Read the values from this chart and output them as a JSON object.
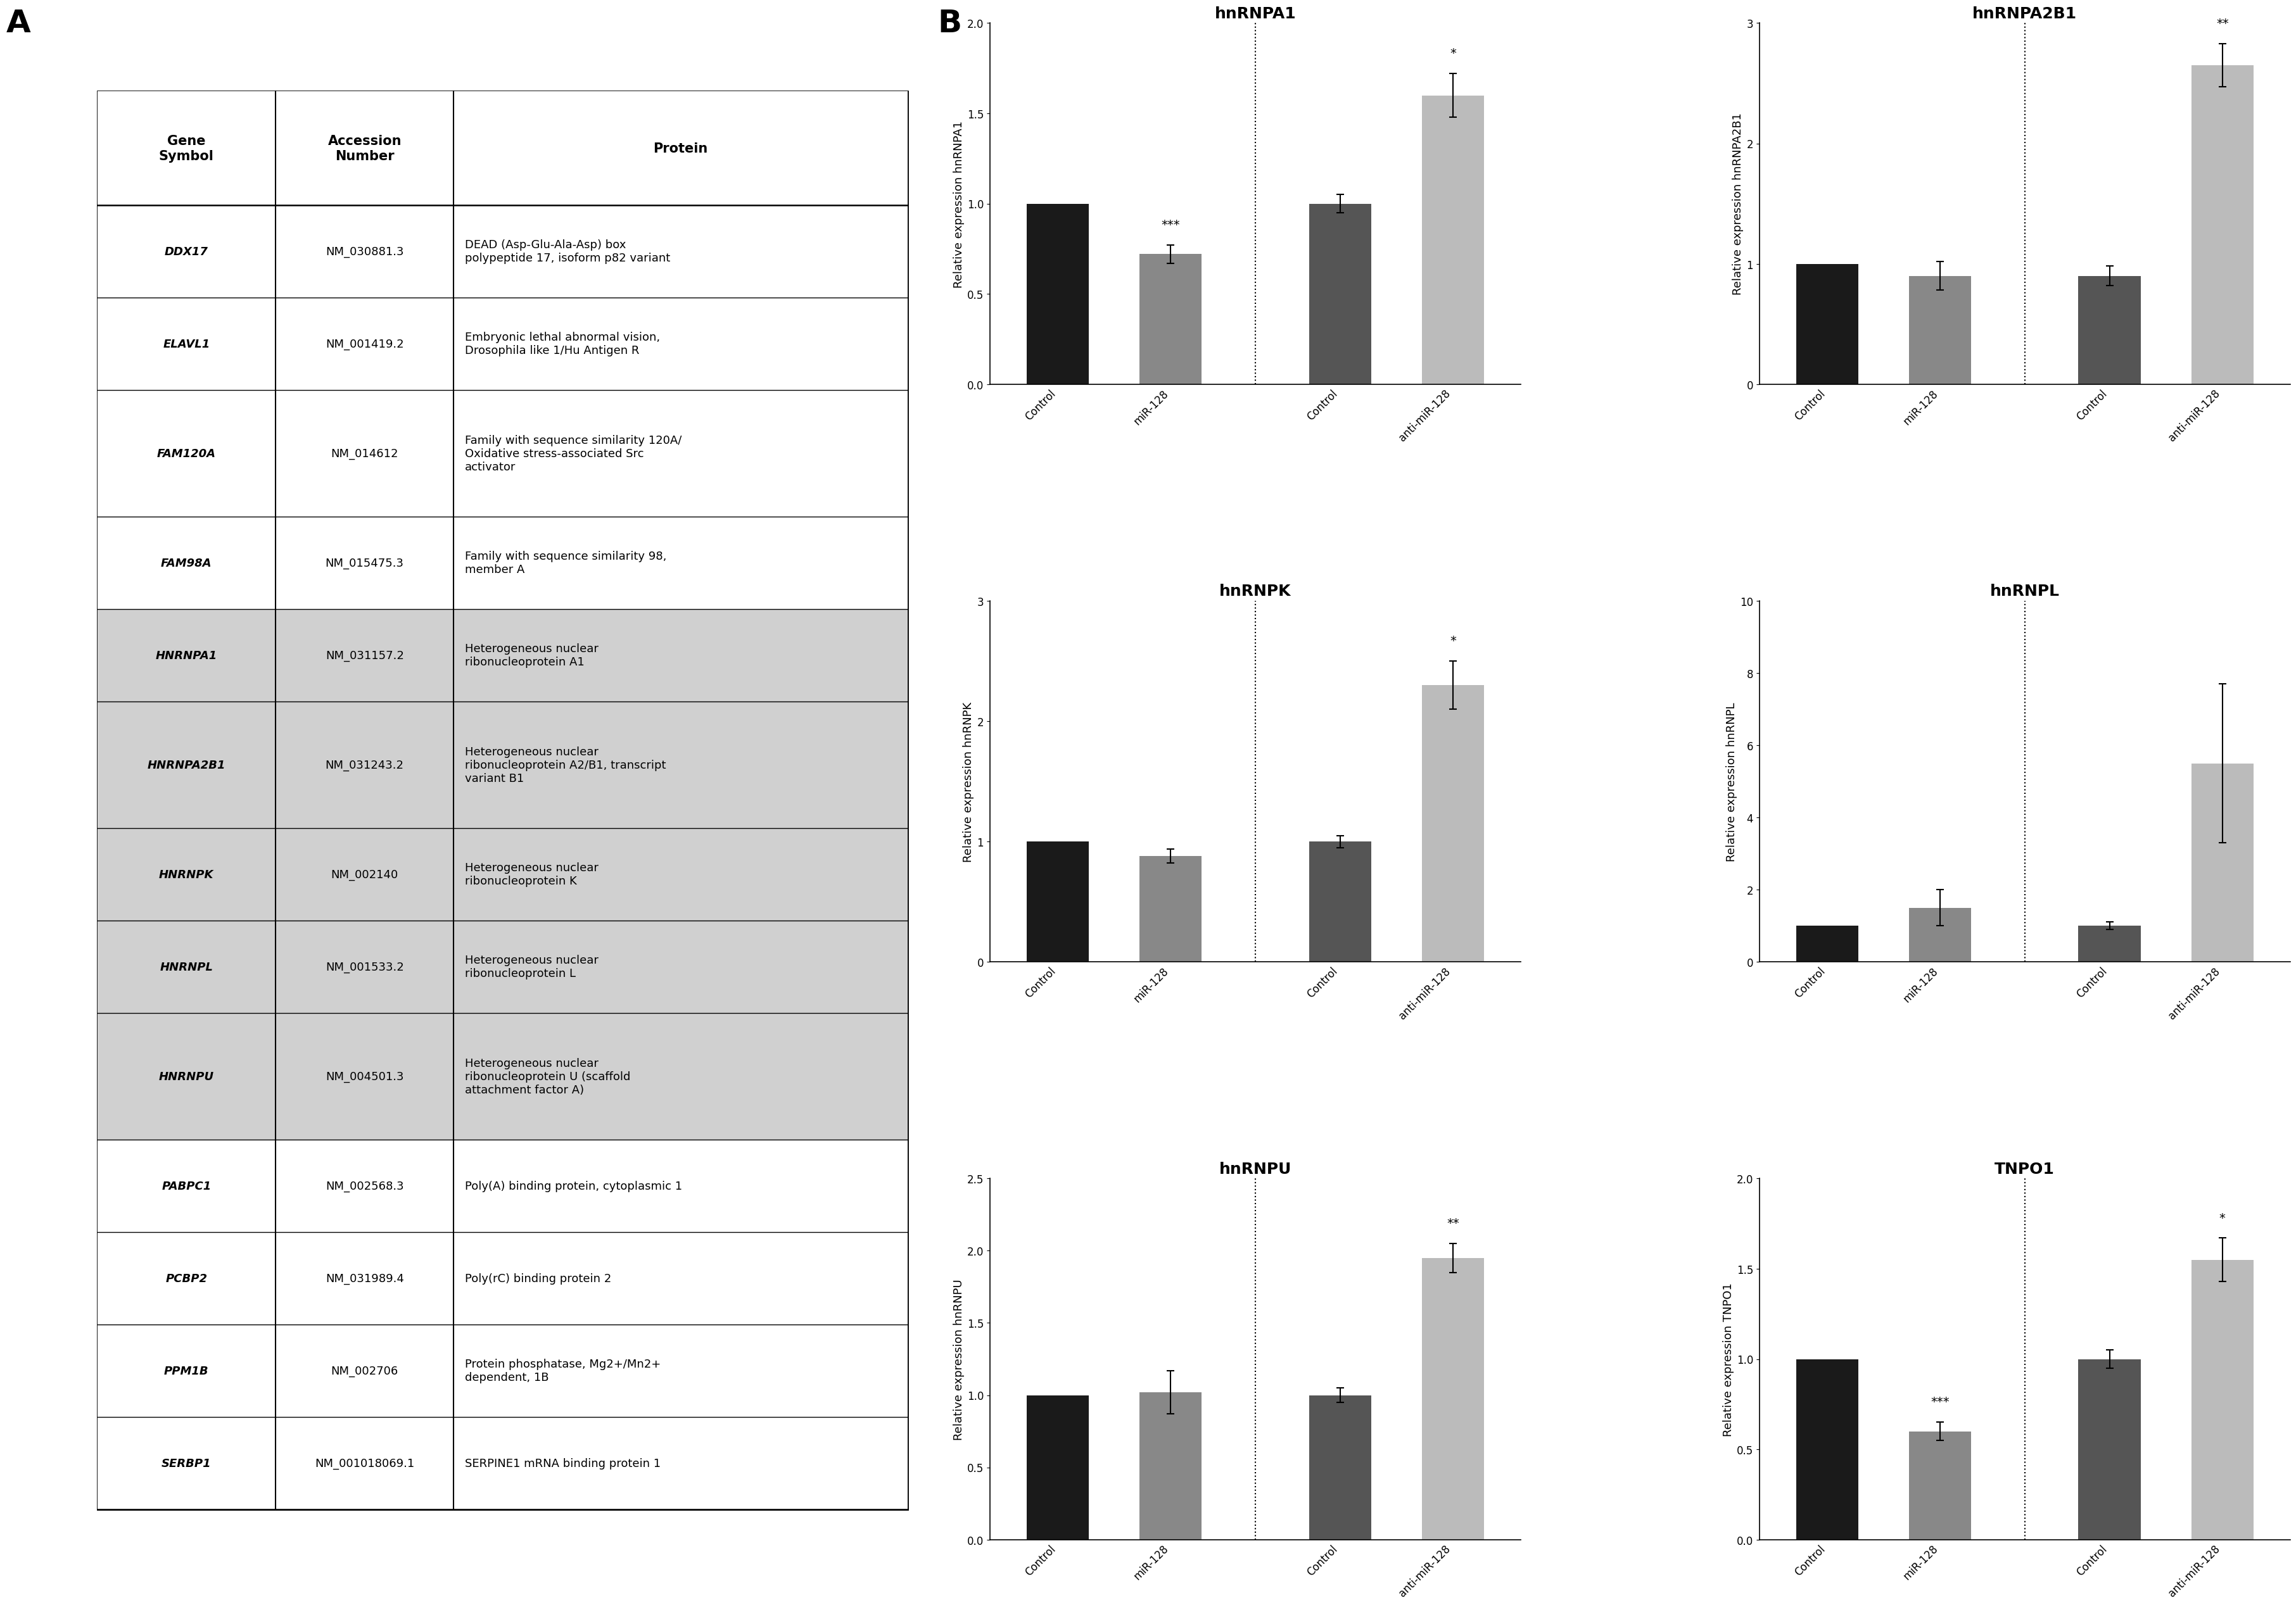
{
  "table": {
    "headers": [
      "Gene\nSymbol",
      "Accession\nNumber",
      "Protein"
    ],
    "rows": [
      [
        "DDX17",
        "NM_030881.3",
        "DEAD (Asp-Glu-Ala-Asp) box\npolypeptide 17, isoform p82 variant"
      ],
      [
        "ELAVL1",
        "NM_001419.2",
        "Embryonic lethal abnormal vision,\nDrosophila like 1/Hu Antigen R"
      ],
      [
        "FAM120A",
        "NM_014612",
        "Family with sequence similarity 120A/\nOxidative stress-associated Src\nactivator"
      ],
      [
        "FAM98A",
        "NM_015475.3",
        "Family with sequence similarity 98,\nmember A"
      ],
      [
        "HNRNPA1",
        "NM_031157.2",
        "Heterogeneous nuclear\nribonucleoprotein A1"
      ],
      [
        "HNRNPA2B1",
        "NM_031243.2",
        "Heterogeneous nuclear\nribonucleoprotein A2/B1, transcript\nvariant B1"
      ],
      [
        "HNRNPK",
        "NM_002140",
        "Heterogeneous nuclear\nribonucleoprotein K"
      ],
      [
        "HNRNPL",
        "NM_001533.2",
        "Heterogeneous nuclear\nribonucleoprotein L"
      ],
      [
        "HNRNPU",
        "NM_004501.3",
        "Heterogeneous nuclear\nribonucleoprotein U (scaffold\nattachment factor A)"
      ],
      [
        "PABPC1",
        "NM_002568.3",
        "Poly(A) binding protein, cytoplasmic 1"
      ],
      [
        "PCBP2",
        "NM_031989.4",
        "Poly(rC) binding protein 2"
      ],
      [
        "PPM1B",
        "NM_002706",
        "Protein phosphatase, Mg2+/Mn2+\ndependent, 1B"
      ],
      [
        "SERBP1",
        "NM_001018069.1",
        "SERPINE1 mRNA binding protein 1"
      ]
    ],
    "highlighted_rows": [
      4,
      5,
      6,
      7,
      8
    ],
    "highlight_color": "#d0d0d0"
  },
  "charts": {
    "hnRNPA1": {
      "title": "hnRNPA1",
      "ylabel": "Relative expression hnRNPA1",
      "ylim": [
        0,
        2.0
      ],
      "yticks": [
        0.0,
        0.5,
        1.0,
        1.5,
        2.0
      ],
      "bars": [
        {
          "label": "Control",
          "value": 1.0,
          "error": 0.0,
          "color": "#1a1a1a",
          "group": "miR"
        },
        {
          "label": "miR-128",
          "value": 0.72,
          "error": 0.05,
          "color": "#888888",
          "group": "miR"
        },
        {
          "label": "Control",
          "value": 1.0,
          "error": 0.05,
          "color": "#555555",
          "group": "anti"
        },
        {
          "label": "anti-miR-128",
          "value": 1.6,
          "error": 0.12,
          "color": "#bbbbbb",
          "group": "anti"
        }
      ],
      "significance": [
        {
          "bar": 1,
          "text": "***"
        },
        {
          "bar": 3,
          "text": "*"
        }
      ]
    },
    "hnRNPA2B1": {
      "title": "hnRNPA2B1",
      "ylabel": "Relative expression hnRNPA2B1",
      "ylim": [
        0,
        3.0
      ],
      "yticks": [
        0,
        1,
        2,
        3
      ],
      "bars": [
        {
          "label": "Control",
          "value": 1.0,
          "error": 0.0,
          "color": "#1a1a1a",
          "group": "miR"
        },
        {
          "label": "miR-128",
          "value": 0.9,
          "error": 0.12,
          "color": "#888888",
          "group": "miR"
        },
        {
          "label": "Control",
          "value": 0.9,
          "error": 0.08,
          "color": "#555555",
          "group": "anti"
        },
        {
          "label": "anti-miR-128",
          "value": 2.65,
          "error": 0.18,
          "color": "#bbbbbb",
          "group": "anti"
        }
      ],
      "significance": [
        {
          "bar": 3,
          "text": "**"
        }
      ]
    },
    "hnRNPK": {
      "title": "hnRNPK",
      "ylabel": "Relative expression hnRNPK",
      "ylim": [
        0,
        3.0
      ],
      "yticks": [
        0,
        1,
        2,
        3
      ],
      "bars": [
        {
          "label": "Control",
          "value": 1.0,
          "error": 0.0,
          "color": "#1a1a1a",
          "group": "miR"
        },
        {
          "label": "miR-128",
          "value": 0.88,
          "error": 0.06,
          "color": "#888888",
          "group": "miR"
        },
        {
          "label": "Control",
          "value": 1.0,
          "error": 0.05,
          "color": "#555555",
          "group": "anti"
        },
        {
          "label": "anti-miR-128",
          "value": 2.3,
          "error": 0.2,
          "color": "#bbbbbb",
          "group": "anti"
        }
      ],
      "significance": [
        {
          "bar": 3,
          "text": "*"
        }
      ]
    },
    "hnRNPL": {
      "title": "hnRNPL",
      "ylabel": "Relative expression hnRNPL",
      "ylim": [
        0,
        10
      ],
      "yticks": [
        0,
        2,
        4,
        6,
        8,
        10
      ],
      "bars": [
        {
          "label": "Control",
          "value": 1.0,
          "error": 0.0,
          "color": "#1a1a1a",
          "group": "miR"
        },
        {
          "label": "miR-128",
          "value": 1.5,
          "error": 0.5,
          "color": "#888888",
          "group": "miR"
        },
        {
          "label": "Control",
          "value": 1.0,
          "error": 0.1,
          "color": "#555555",
          "group": "anti"
        },
        {
          "label": "anti-miR-128",
          "value": 5.5,
          "error": 2.2,
          "color": "#bbbbbb",
          "group": "anti"
        }
      ],
      "significance": []
    },
    "hnRNPU": {
      "title": "hnRNPU",
      "ylabel": "Relative expression hnRNPU",
      "ylim": [
        0,
        2.5
      ],
      "yticks": [
        0.0,
        0.5,
        1.0,
        1.5,
        2.0,
        2.5
      ],
      "bars": [
        {
          "label": "Control",
          "value": 1.0,
          "error": 0.0,
          "color": "#1a1a1a",
          "group": "miR"
        },
        {
          "label": "miR-128",
          "value": 1.02,
          "error": 0.15,
          "color": "#888888",
          "group": "miR"
        },
        {
          "label": "Control",
          "value": 1.0,
          "error": 0.05,
          "color": "#555555",
          "group": "anti"
        },
        {
          "label": "anti-miR-128",
          "value": 1.95,
          "error": 0.1,
          "color": "#bbbbbb",
          "group": "anti"
        }
      ],
      "significance": [
        {
          "bar": 3,
          "text": "**"
        }
      ]
    },
    "TNPO1": {
      "title": "TNPO1",
      "ylabel": "Relative expression TNPO1",
      "ylim": [
        0,
        2.0
      ],
      "yticks": [
        0.0,
        0.5,
        1.0,
        1.5,
        2.0
      ],
      "bars": [
        {
          "label": "Control",
          "value": 1.0,
          "error": 0.0,
          "color": "#1a1a1a",
          "group": "miR"
        },
        {
          "label": "miR-128",
          "value": 0.6,
          "error": 0.05,
          "color": "#888888",
          "group": "miR"
        },
        {
          "label": "Control",
          "value": 1.0,
          "error": 0.05,
          "color": "#555555",
          "group": "anti"
        },
        {
          "label": "anti-miR-128",
          "value": 1.55,
          "error": 0.12,
          "color": "#bbbbbb",
          "group": "anti"
        }
      ],
      "significance": [
        {
          "bar": 1,
          "text": "***"
        },
        {
          "bar": 3,
          "text": "*"
        }
      ]
    }
  },
  "panel_label_fontsize": 36,
  "title_fontsize": 18,
  "axis_label_fontsize": 13,
  "tick_fontsize": 12,
  "sig_fontsize": 14,
  "bar_width": 0.55,
  "background_color": "#ffffff"
}
